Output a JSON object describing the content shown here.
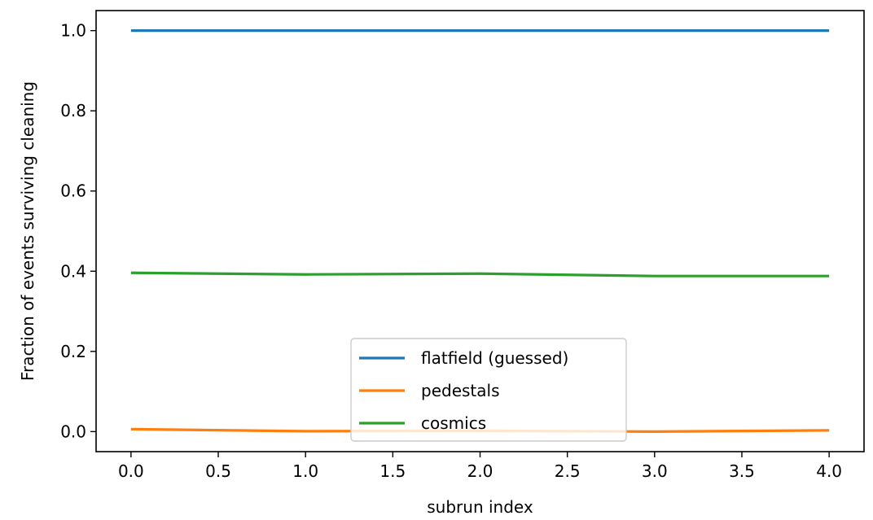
{
  "chart_data": {
    "type": "line",
    "title": "",
    "xlabel": "subrun index",
    "ylabel": "Fraction of events surviving cleaning",
    "xlim": [
      -0.2,
      4.2
    ],
    "ylim": [
      -0.05,
      1.05
    ],
    "xticks": [
      "0.0",
      "0.5",
      "1.0",
      "1.5",
      "2.0",
      "2.5",
      "3.0",
      "3.5",
      "4.0"
    ],
    "yticks": [
      "0.0",
      "0.2",
      "0.4",
      "0.6",
      "0.8",
      "1.0"
    ],
    "grid": false,
    "legend_position": "lower center",
    "x": [
      0,
      1,
      2,
      3,
      4
    ],
    "series": [
      {
        "name": "flatfield (guessed)",
        "color": "#1f77b4",
        "values": [
          1.0,
          1.0,
          1.0,
          1.0,
          1.0
        ]
      },
      {
        "name": "pedestals",
        "color": "#ff7f0e",
        "values": [
          0.006,
          0.001,
          0.002,
          0.0,
          0.003
        ]
      },
      {
        "name": "cosmics",
        "color": "#2ca02c",
        "values": [
          0.396,
          0.392,
          0.394,
          0.388,
          0.388
        ]
      }
    ]
  }
}
